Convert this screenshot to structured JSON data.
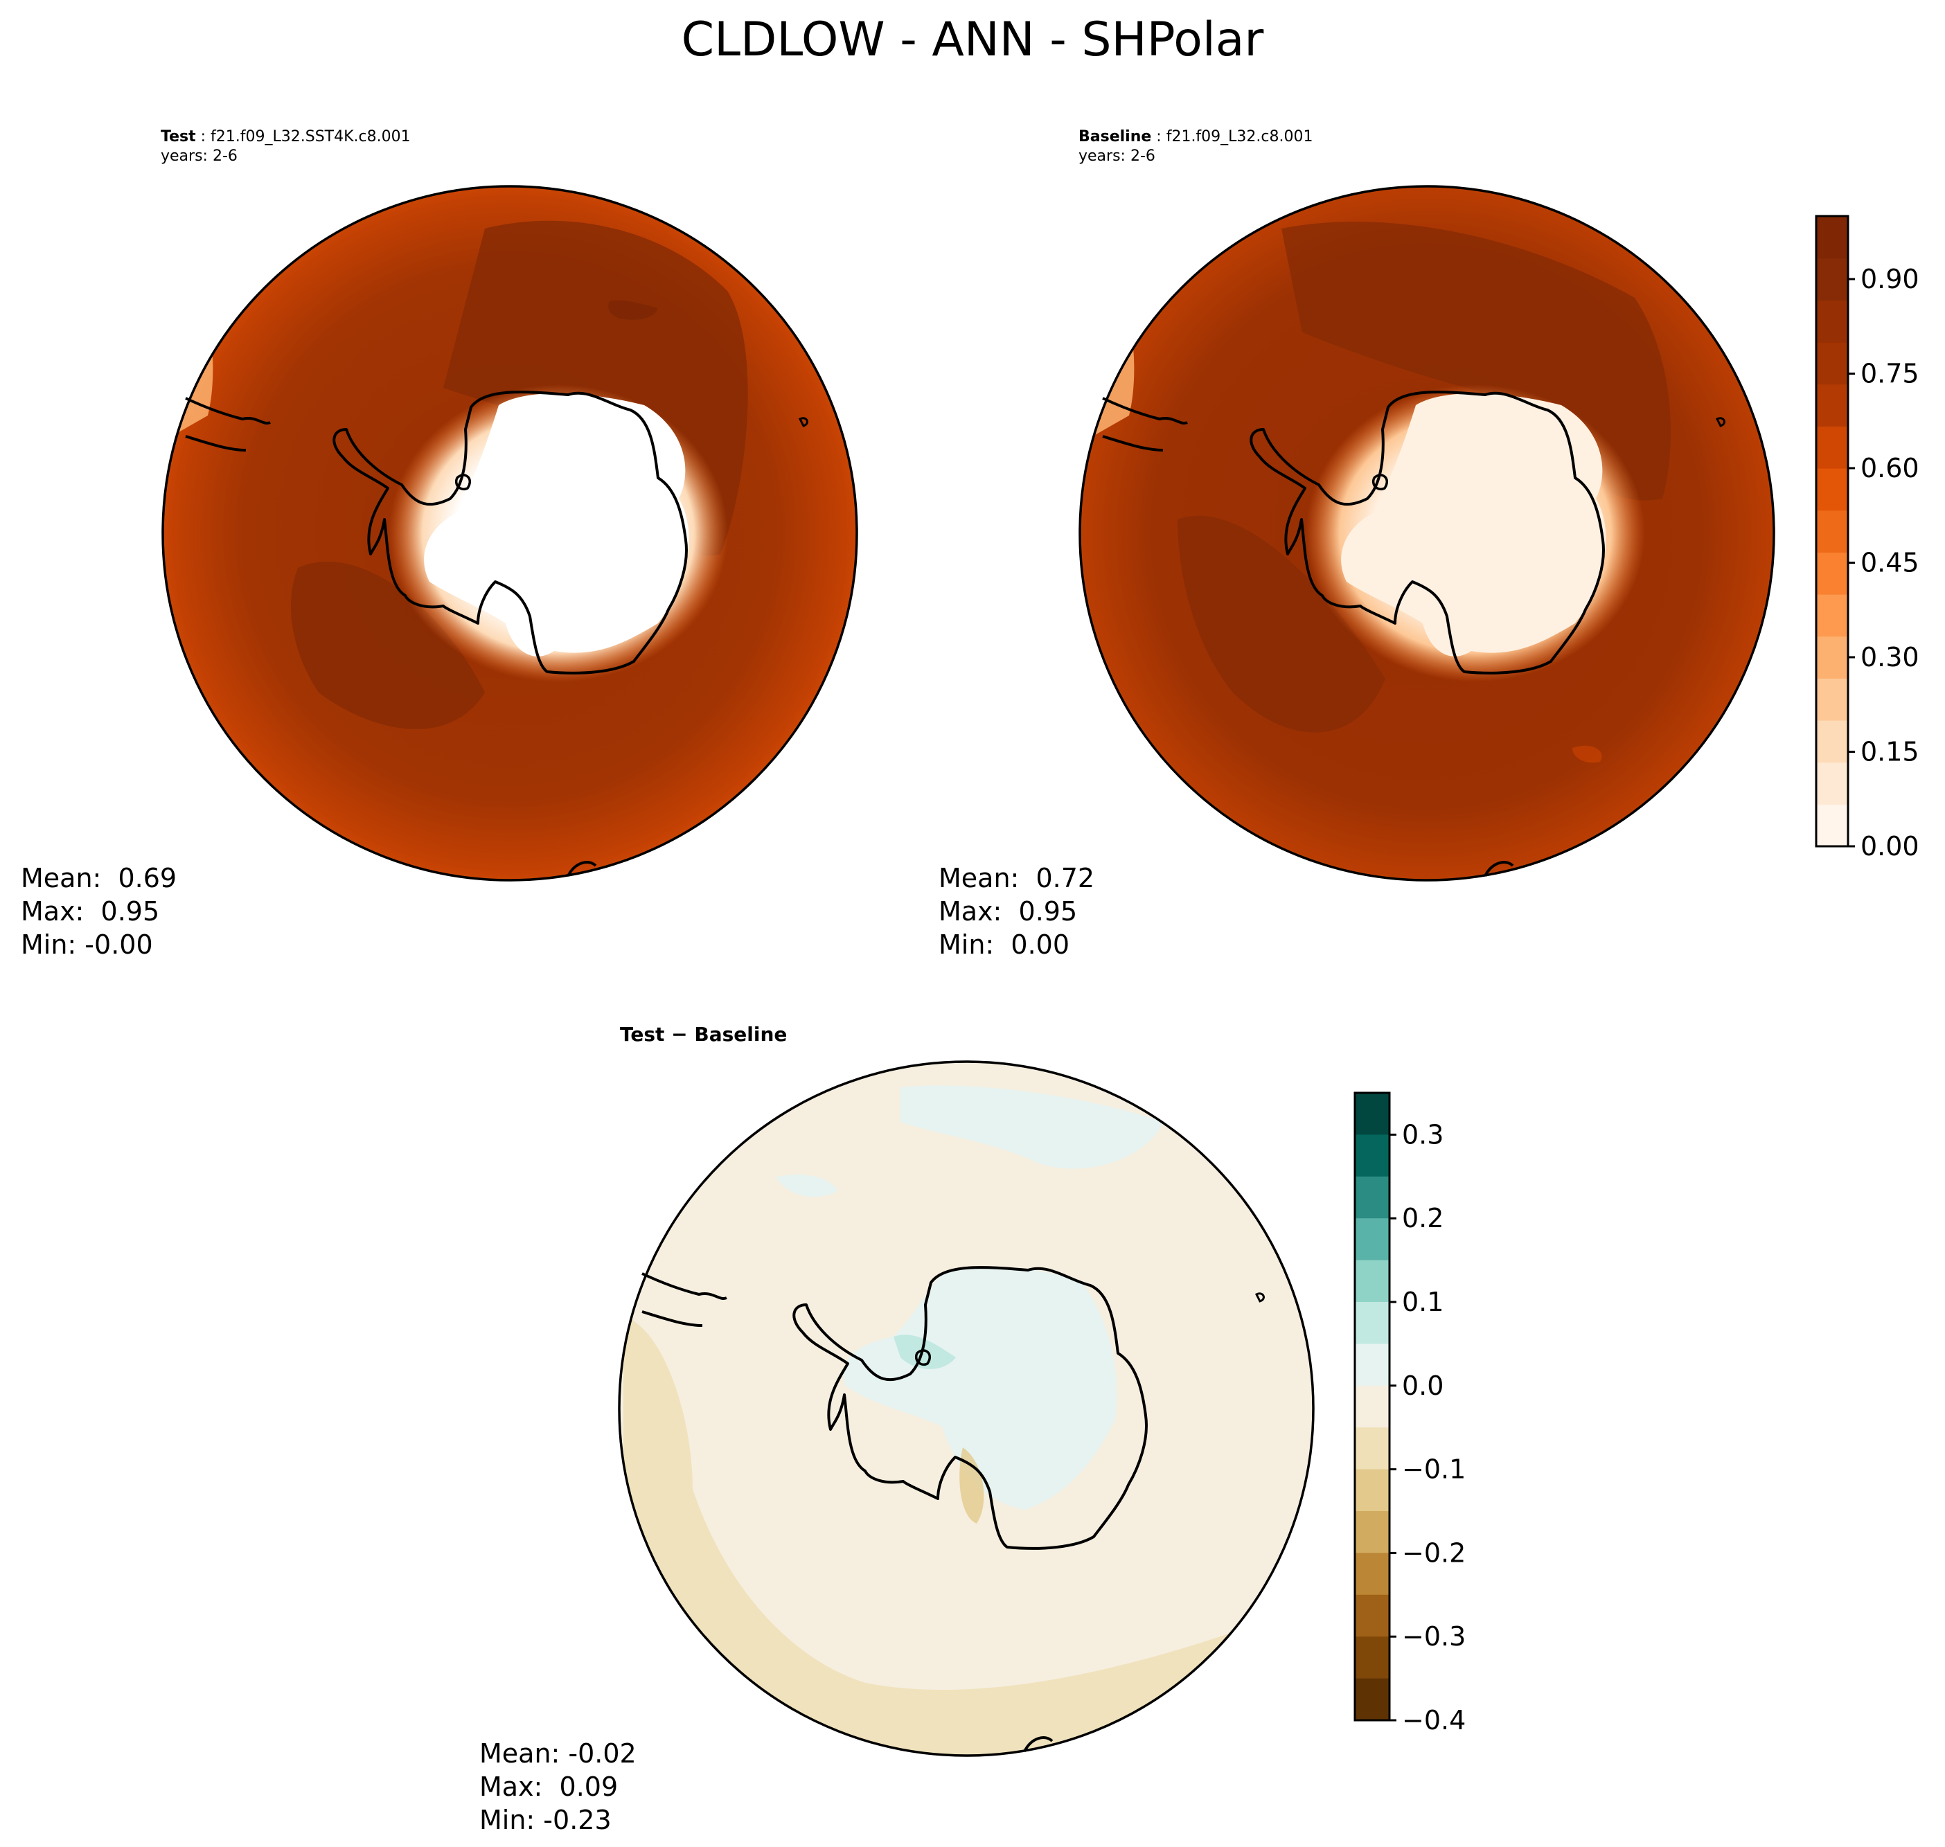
{
  "title": "CLDLOW - ANN - SHPolar",
  "panels": {
    "test": {
      "label": "Test",
      "case": "f21.f09_L32.SST4K.c8.001",
      "years": "years: 2-6",
      "stats": {
        "mean": "Mean:  0.69",
        "max": "Max:  0.95",
        "min": "Min: -0.00"
      }
    },
    "baseline": {
      "label": "Baseline",
      "case": "f21.f09_L32.c8.001",
      "years": "years: 2-6",
      "stats": {
        "mean": "Mean:  0.72",
        "max": "Max:  0.95",
        "min": "Min:  0.00"
      }
    },
    "diff": {
      "label": "Test − Baseline",
      "stats": {
        "mean": "Mean: -0.02",
        "max": "Max:  0.09",
        "min": "Min: -0.23"
      }
    }
  },
  "colorbars": {
    "main": {
      "ticks": [
        "0.00",
        "0.15",
        "0.30",
        "0.45",
        "0.60",
        "0.75",
        "0.90"
      ],
      "colors": [
        "#fff5eb",
        "#fee9d4",
        "#fddbb8",
        "#fdc896",
        "#fdb170",
        "#fd9a50",
        "#f98130",
        "#ef6a18",
        "#e35608",
        "#d04603",
        "#b33b03",
        "#a23403",
        "#962f03",
        "#862b05",
        "#7f2704"
      ]
    },
    "diff": {
      "ticks": [
        "0.3",
        "0.2",
        "0.1",
        "0.0",
        "−0.1",
        "−0.2",
        "−0.3",
        "−0.4"
      ],
      "colors": [
        "#01463f",
        "#04665c",
        "#2a8c82",
        "#5ab3a8",
        "#8fd3c7",
        "#c1e8e1",
        "#e6f3f1",
        "#f6efe0",
        "#f0e0b8",
        "#e3ca8c",
        "#d1ab5f",
        "#bb8635",
        "#9f6017",
        "#7f4708",
        "#5e3203"
      ]
    }
  }
}
